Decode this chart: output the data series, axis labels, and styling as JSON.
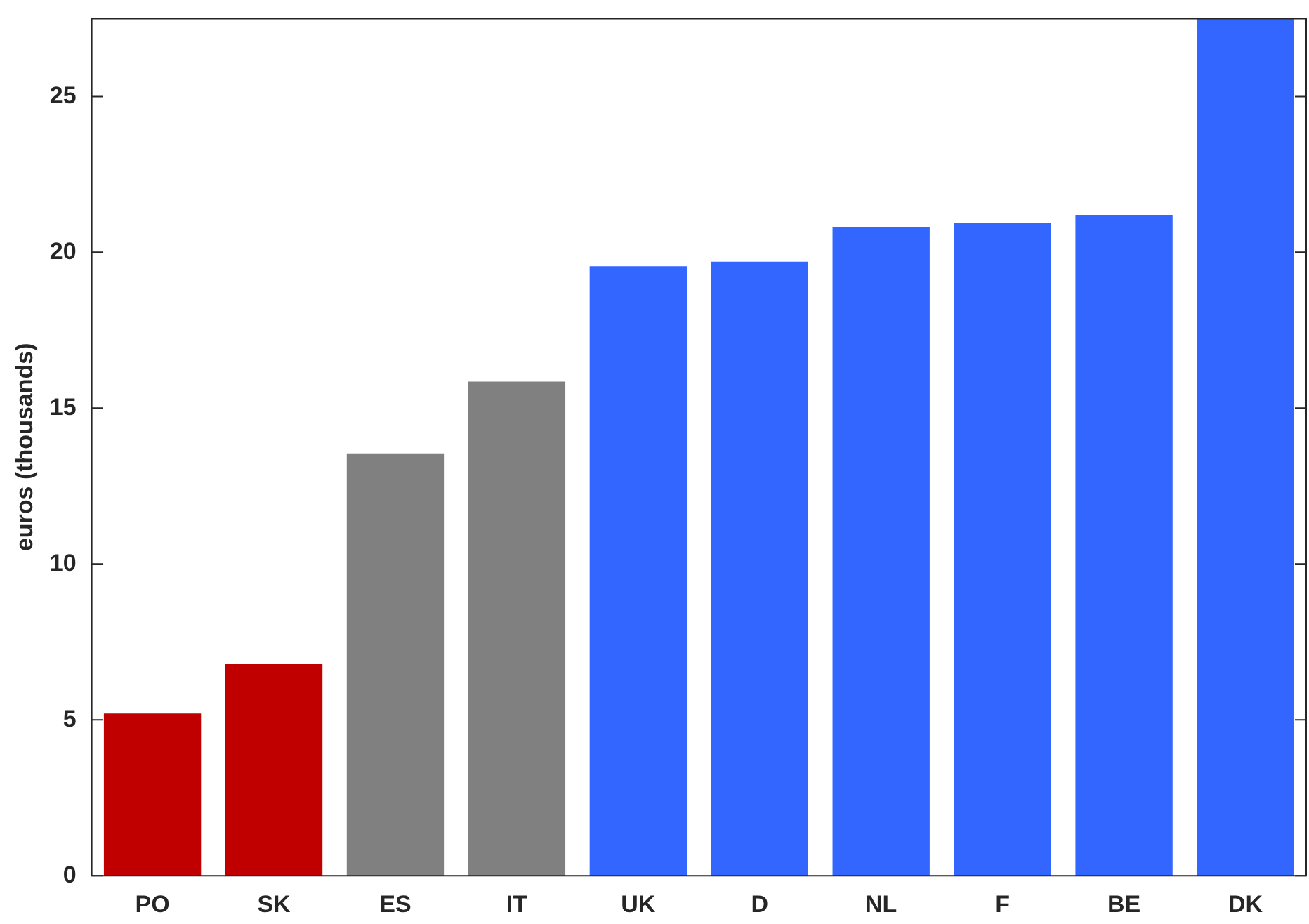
{
  "chart_data": {
    "type": "bar",
    "ylabel": "euros (thousands)",
    "categories": [
      "PO",
      "SK",
      "ES",
      "IT",
      "UK",
      "D",
      "NL",
      "F",
      "BE",
      "DK"
    ],
    "values": [
      5.2,
      6.8,
      13.55,
      15.85,
      19.55,
      19.7,
      20.8,
      20.95,
      21.2,
      27.5
    ],
    "colors": [
      "#c00000",
      "#c00000",
      "#808080",
      "#808080",
      "#3366ff",
      "#3366ff",
      "#3366ff",
      "#3366ff",
      "#3366ff",
      "#3366ff"
    ],
    "ylim": [
      0,
      27.5
    ],
    "yticks": [
      0,
      5,
      10,
      15,
      20,
      25
    ]
  }
}
